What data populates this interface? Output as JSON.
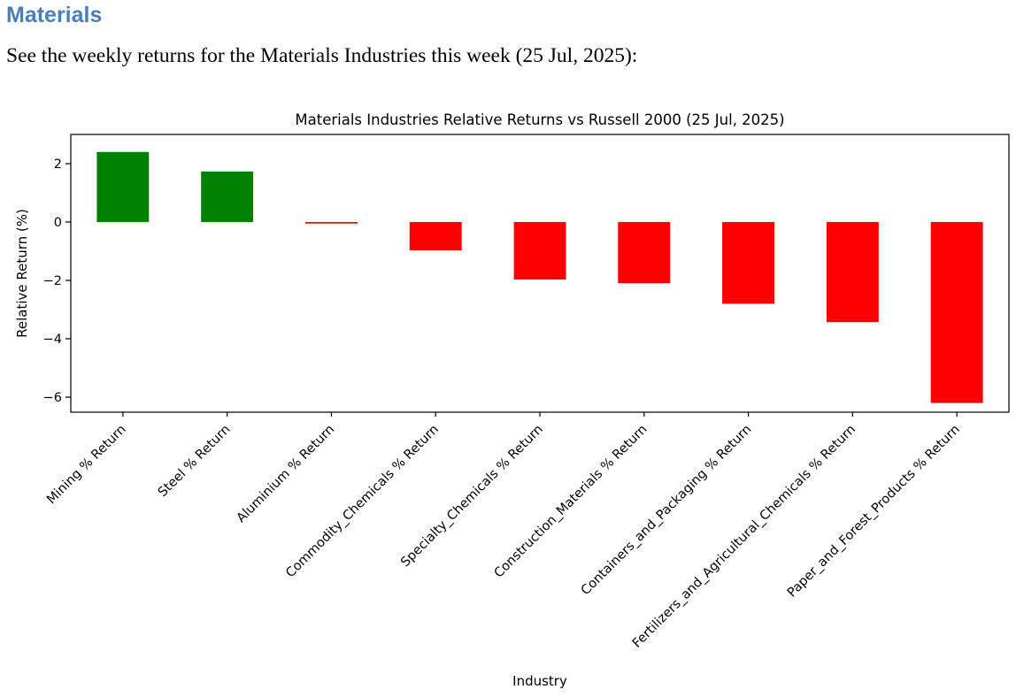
{
  "document": {
    "heading": "Materials",
    "intro": "See the weekly returns for the Materials Industries this week (25 Jul, 2025):"
  },
  "colors": {
    "heading_blue": "#4A7EBB",
    "positive_bar": "#008000",
    "negative_bar": "#FF0000",
    "axis": "#000000"
  },
  "chart_data": {
    "type": "bar",
    "title": "Materials Industries Relative Returns vs Russell 2000 (25 Jul, 2025)",
    "xlabel": "Industry",
    "ylabel": "Relative Return (%)",
    "categories": [
      "Mining % Return",
      "Steel % Return",
      "Aluminium % Return",
      "Commodity_Chemicals % Return",
      "Specialty_Chemicals % Return",
      "Construction_Materials % Return",
      "Containers_and_Packaging % Return",
      "Fertilizers_and_Agricultural_Chemicals % Return",
      "Paper_and_Forest_Products % Return"
    ],
    "values": [
      2.4,
      1.73,
      -0.05,
      -0.97,
      -1.97,
      -2.1,
      -2.8,
      -3.43,
      -6.2
    ],
    "yticks": [
      2,
      0,
      -2,
      -4,
      -6
    ],
    "ylim": [
      -6.5,
      3.0
    ],
    "bar_width_fraction": 0.5,
    "x_tick_rotation_deg": 45,
    "grid": false,
    "legend": false
  }
}
